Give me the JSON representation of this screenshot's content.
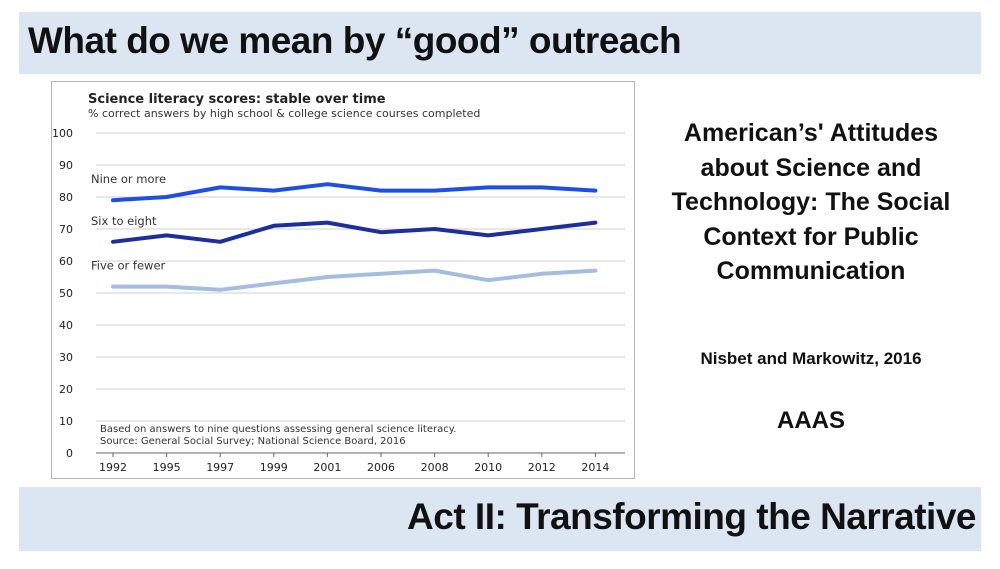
{
  "slide": {
    "title": "What do we mean by “good” outreach",
    "footer_title": "Act II: Transforming the Narrative"
  },
  "reference": {
    "title": "American’s' Attitudes about Science and Technology: The Social Context for Public Communication",
    "authors": "Nisbet and Markowitz, 2016",
    "organization": "AAAS"
  },
  "colors": {
    "banner": "#dce6f2",
    "nine_or_more": "#1f4fe0",
    "six_to_eight": "#1c2f9a",
    "five_or_fewer": "#a3bde0"
  },
  "chart_data": {
    "type": "line",
    "title": "Science literacy scores: stable over time",
    "subtitle": "% correct answers by high school & college science courses completed",
    "categories": [
      "1992",
      "1995",
      "1997",
      "1999",
      "2001",
      "2006",
      "2008",
      "2010",
      "2012",
      "2014"
    ],
    "ylim": [
      0,
      100
    ],
    "yticks": [
      0,
      10,
      20,
      30,
      40,
      50,
      60,
      70,
      80,
      90,
      100
    ],
    "grid": true,
    "series": [
      {
        "name": "Nine or more",
        "color": "#1f4fe0",
        "values": [
          79,
          80,
          83,
          82,
          84,
          82,
          82,
          83,
          83,
          82
        ]
      },
      {
        "name": "Six to eight",
        "color": "#1c2f9a",
        "values": [
          66,
          68,
          66,
          71,
          72,
          69,
          70,
          68,
          70,
          72
        ]
      },
      {
        "name": "Five or fewer",
        "color": "#a3bde0",
        "values": [
          52,
          52,
          51,
          53,
          55,
          56,
          57,
          54,
          56,
          57
        ]
      }
    ],
    "notes": [
      "Based on answers to nine questions assessing general science literacy.",
      "Source: General Social Survey; National Science Board, 2016"
    ]
  }
}
